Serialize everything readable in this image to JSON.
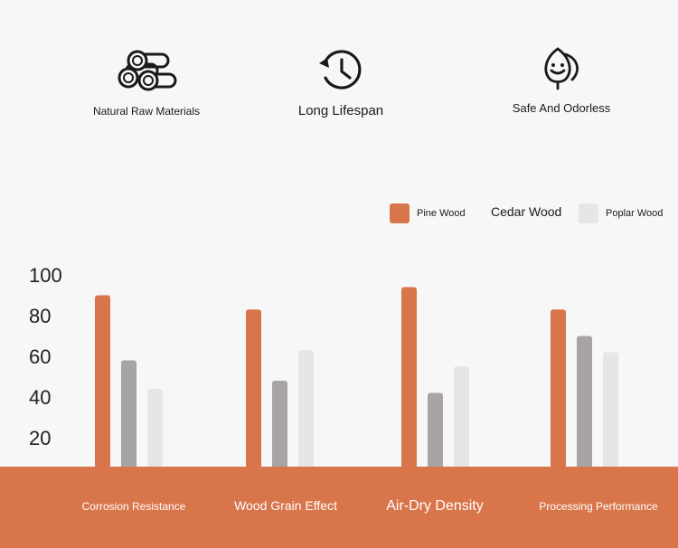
{
  "features": [
    {
      "icon": "logs-icon",
      "label": "Natural Raw Materials"
    },
    {
      "icon": "clock-history-icon",
      "label": "Long Lifespan"
    },
    {
      "icon": "leaf-face-icon",
      "label": "Safe And Odorless"
    }
  ],
  "colors": {
    "pine": "#d9754a",
    "cedar": "#a8a3a5",
    "poplar": "#e6e6e6",
    "base": "#d9754a",
    "axis_text": "#222222",
    "background": "#f7f7f7"
  },
  "chart_data": {
    "type": "bar",
    "categories": [
      "Corrosion Resistance",
      "Wood Grain Effect",
      "Air-Dry Density",
      "Processing Performance"
    ],
    "series": [
      {
        "name": "Pine Wood",
        "values": [
          90,
          83,
          94,
          83
        ]
      },
      {
        "name": "Cedar Wood",
        "values": [
          58,
          48,
          42,
          70
        ]
      },
      {
        "name": "Poplar Wood",
        "values": [
          44,
          63,
          55,
          62
        ]
      }
    ],
    "yticks": [
      20,
      40,
      60,
      80,
      100
    ],
    "ylim": [
      0,
      100
    ],
    "title": "",
    "xlabel": "",
    "ylabel": "",
    "legend": "top-right",
    "grid": false
  }
}
